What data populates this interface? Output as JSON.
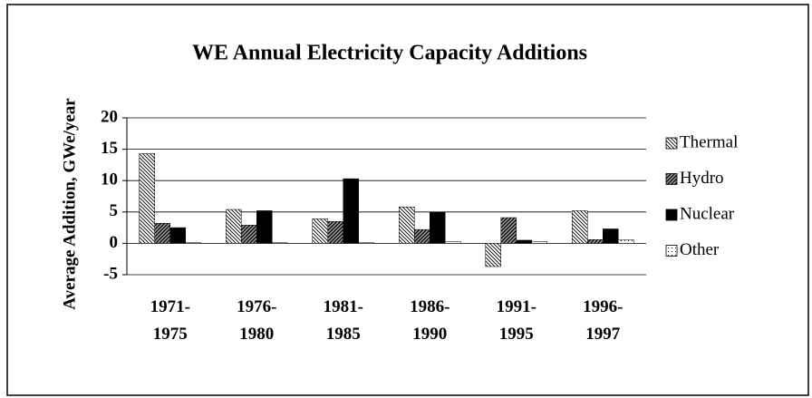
{
  "chart_data": {
    "type": "bar",
    "title": "WE Annual Electricity Capacity Additions",
    "y_label": "Average Addition, GWe/year",
    "categories": [
      "1971-1975",
      "1976-1980",
      "1981-1985",
      "1986-1990",
      "1991-1995",
      "1996-1997"
    ],
    "series": [
      {
        "name": "Thermal",
        "color": "#000000",
        "pattern": "hatch-back",
        "values": [
          14.3,
          5.4,
          3.9,
          5.8,
          -3.7,
          5.2
        ]
      },
      {
        "name": "Hydro",
        "color": "#000000",
        "pattern": "hatch-fwd",
        "values": [
          3.2,
          2.9,
          3.5,
          2.2,
          4.1,
          0.6
        ]
      },
      {
        "name": "Nuclear",
        "color": "#000000",
        "pattern": "solid",
        "values": [
          2.5,
          5.2,
          10.3,
          5.0,
          0.5,
          2.3
        ]
      },
      {
        "name": "Other",
        "color": "#000000",
        "pattern": "dots",
        "values": [
          0.1,
          0.1,
          0.1,
          0.3,
          0.3,
          0.6
        ]
      }
    ],
    "ylim": [
      -5,
      20
    ],
    "yticks": [
      -5,
      0,
      5,
      10,
      15,
      20
    ],
    "grid": true,
    "legend": "right"
  }
}
